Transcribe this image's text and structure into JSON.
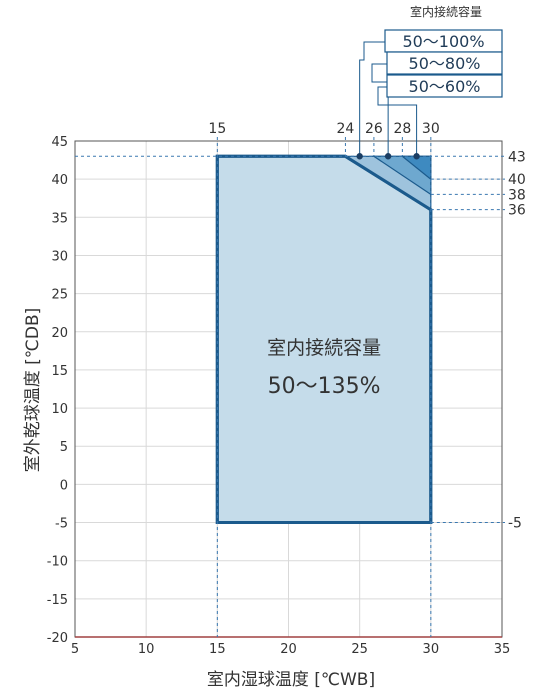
{
  "chart_data": {
    "type": "area",
    "xlabel": "室内湿球温度 [℃WB]",
    "ylabel": "室外乾球温度 [℃DB]",
    "xlim": [
      5,
      35
    ],
    "ylim": [
      -20,
      45
    ],
    "xticks": [
      "5",
      "10",
      "15",
      "20",
      "25",
      "30",
      "35"
    ],
    "yticks": [
      "-20",
      "-15",
      "-10",
      "-5",
      "0",
      "5",
      "10",
      "15",
      "20",
      "25",
      "30",
      "35",
      "40",
      "45"
    ],
    "grid": true,
    "main_region": {
      "label": "室内接続容量",
      "range_label": "50〜135%",
      "polygon": [
        [
          15,
          -5
        ],
        [
          15,
          43
        ],
        [
          24,
          43
        ],
        [
          30,
          36
        ],
        [
          30,
          -5
        ]
      ],
      "color": "#c5dcea",
      "border_color": "#1b5a8c"
    },
    "sub_regions": [
      {
        "range_label": "50〜100%",
        "polygon": [
          [
            24,
            43
          ],
          [
            30,
            43
          ],
          [
            30,
            36
          ]
        ],
        "color": "#9ec3dd",
        "max_x": 24,
        "min_y": 36
      },
      {
        "range_label": "50〜80%",
        "polygon": [
          [
            26,
            43
          ],
          [
            30,
            43
          ],
          [
            30,
            38
          ]
        ],
        "color": "#6ea8cf",
        "max_x": 26,
        "min_y": 38
      },
      {
        "range_label": "50〜60%",
        "polygon": [
          [
            28,
            43
          ],
          [
            30,
            43
          ],
          [
            30,
            40
          ]
        ],
        "color": "#3e8ac0",
        "max_x": 28,
        "min_y": 40
      }
    ],
    "markers": [
      [
        25,
        43
      ],
      [
        27,
        43
      ],
      [
        29,
        43
      ]
    ],
    "top_labels": [
      {
        "x": 15,
        "text": "15"
      },
      {
        "x": 24,
        "text": "24"
      },
      {
        "x": 26,
        "text": "26"
      },
      {
        "x": 28,
        "text": "28"
      },
      {
        "x": 30,
        "text": "30"
      }
    ],
    "right_labels": [
      {
        "y": 43,
        "text": "43"
      },
      {
        "y": 40,
        "text": "40"
      },
      {
        "y": 38,
        "text": "38"
      },
      {
        "y": 36,
        "text": "36"
      },
      {
        "y": -5,
        "text": "-5"
      }
    ],
    "legend": {
      "title": "室内接続容量",
      "items": [
        "50〜100%",
        "50〜80%",
        "50〜60%"
      ]
    }
  }
}
